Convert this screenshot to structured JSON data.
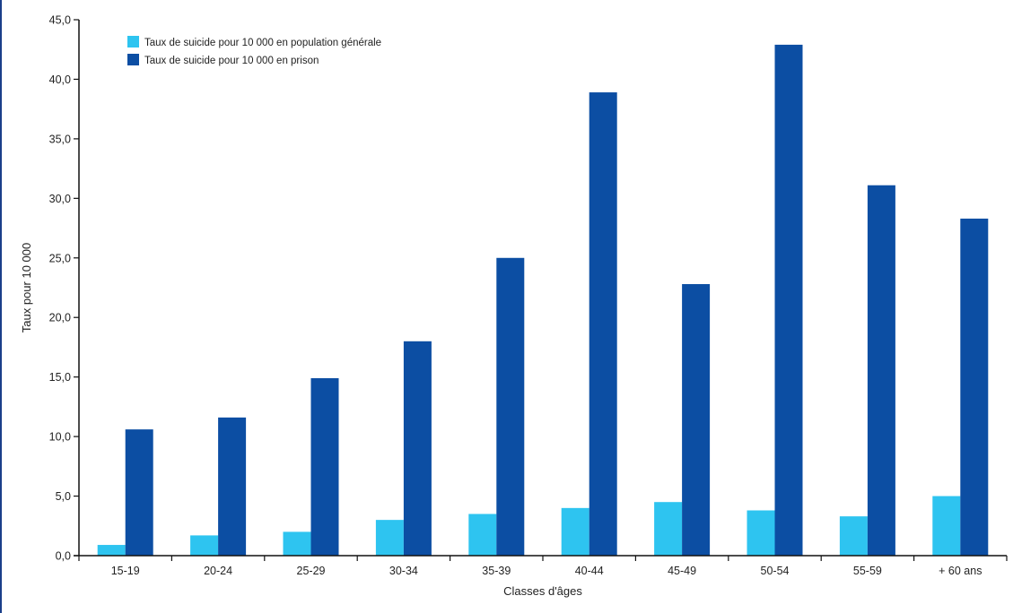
{
  "chart_data": {
    "type": "bar",
    "title": "",
    "xlabel": "Classes d'âges",
    "ylabel": "Taux pour 10 000",
    "ylim": [
      0,
      45
    ],
    "yticks": [
      "0,0",
      "5,0",
      "10,0",
      "15,0",
      "20,0",
      "25,0",
      "30,0",
      "35,0",
      "40,0",
      "45,0"
    ],
    "grid": false,
    "legend_position": "top-left",
    "categories": [
      "15-19",
      "20-24",
      "25-29",
      "30-34",
      "35-39",
      "40-44",
      "45-49",
      "50-54",
      "55-59",
      "+ 60 ans"
    ],
    "series": [
      {
        "name": "Taux de suicide pour 10 000 en population générale",
        "color": "#2ec4f0",
        "values": [
          0.9,
          1.7,
          2.0,
          3.0,
          3.5,
          4.0,
          4.5,
          3.8,
          3.3,
          5.0
        ]
      },
      {
        "name": "Taux de suicide pour 10 000 en prison",
        "color": "#0c4ea3",
        "values": [
          10.6,
          11.6,
          14.9,
          18.0,
          25.0,
          38.9,
          22.8,
          42.9,
          31.1,
          28.3
        ]
      }
    ]
  }
}
